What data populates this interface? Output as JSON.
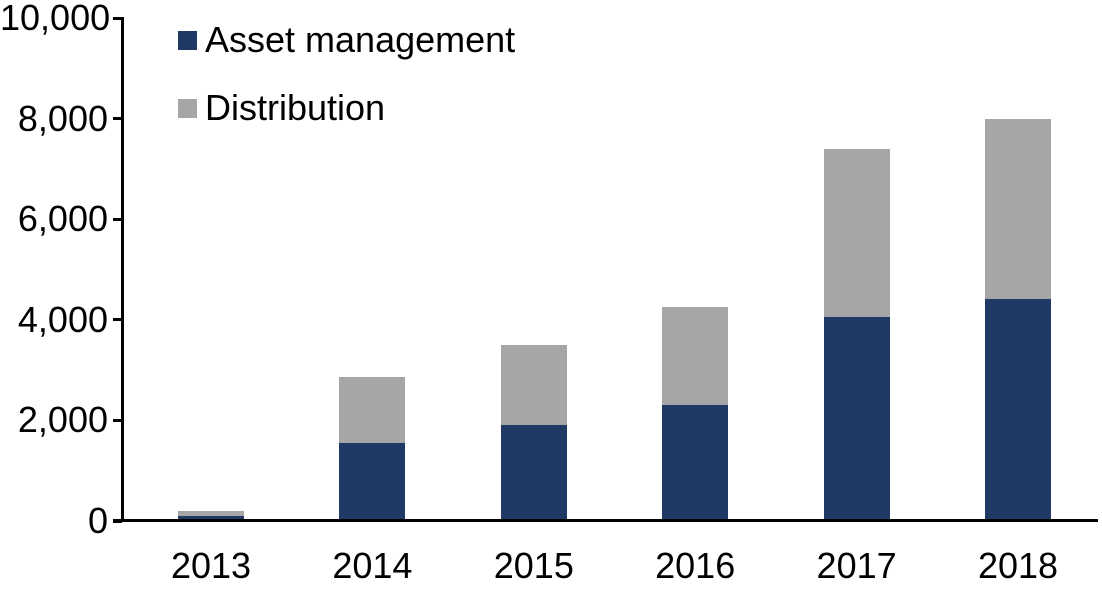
{
  "chart_data": {
    "type": "bar",
    "stacked": true,
    "title": "",
    "xlabel": "",
    "ylabel": "",
    "categories": [
      "2013",
      "2014",
      "2015",
      "2016",
      "2017",
      "2018"
    ],
    "series": [
      {
        "name": "Asset management",
        "color": "#203864",
        "values": [
          100,
          1550,
          1900,
          2300,
          4050,
          4420
        ]
      },
      {
        "name": "Distribution",
        "color": "#A6A6A6",
        "values": [
          90,
          1320,
          1600,
          1950,
          3350,
          3580
        ]
      }
    ],
    "totals": [
      190,
      2870,
      3500,
      4250,
      7400,
      8000
    ],
    "ylim": [
      0,
      10000
    ],
    "yticks": [
      0,
      2000,
      4000,
      6000,
      8000,
      10000
    ],
    "ytick_labels": [
      "0",
      "2,000",
      "4,000",
      "6,000",
      "8,000",
      "10,000"
    ],
    "grid": false,
    "legend_position": "top-left-inside",
    "axis_color": "#000000",
    "background": "#FFFFFF"
  }
}
